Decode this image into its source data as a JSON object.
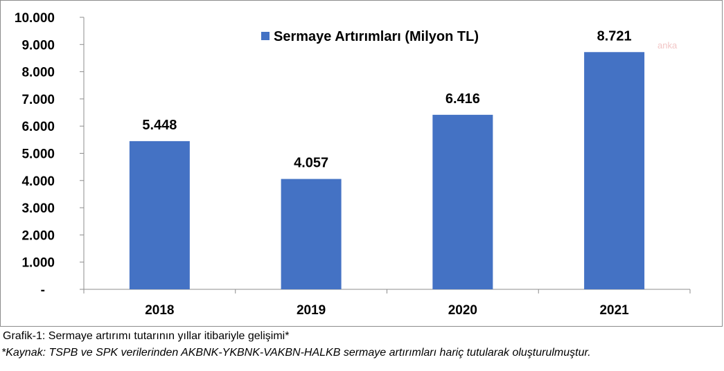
{
  "chart_data": {
    "type": "bar",
    "categories": [
      "2018",
      "2019",
      "2020",
      "2021"
    ],
    "series": [
      {
        "name": "Sermaye Artırımları (Milyon TL)",
        "values": [
          5448,
          4057,
          6416,
          8721
        ],
        "color": "#4472c4"
      }
    ],
    "data_labels": [
      "5.448",
      "4.057",
      "6.416",
      "8.721"
    ],
    "ylim": [
      0,
      10000
    ],
    "yticks": [
      0,
      1000,
      2000,
      3000,
      4000,
      5000,
      6000,
      7000,
      8000,
      9000,
      10000
    ],
    "ytick_labels": [
      "-",
      "1.000",
      "2.000",
      "3.000",
      "4.000",
      "5.000",
      "6.000",
      "7.000",
      "8.000",
      "9.000",
      "10.000"
    ],
    "legend_position": "top-center",
    "grid": false
  },
  "watermark": "anka",
  "captions": {
    "figure": "Grafik-1: Sermaye artırımı tutarının yıllar itibariyle gelişimi*",
    "source": "*Kaynak: TSPB ve SPK verilerinden AKBNK-YKBNK-VAKBN-HALKB sermaye artırımları hariç tutularak oluşturulmuştur."
  }
}
